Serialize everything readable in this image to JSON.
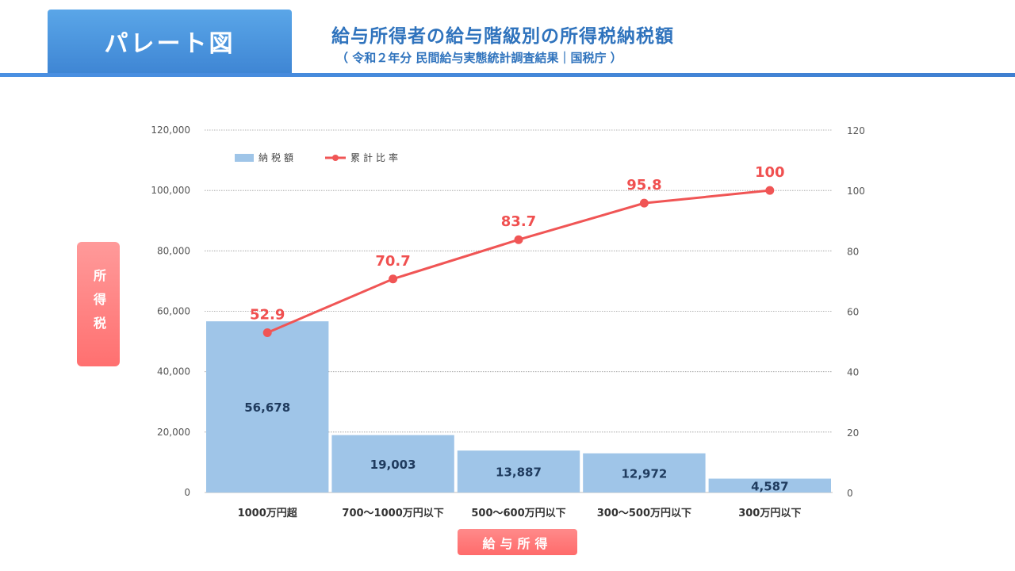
{
  "header": {
    "tab_label": "パレート図",
    "title": "給与所得者の給与階級別の所得税納税額",
    "subtitle": "（ 令和２年分 民間給与実態統計調査結果｜国税庁 ）"
  },
  "axis_badges": {
    "y": "所得税",
    "x": "給与所得"
  },
  "colors": {
    "bar": "#9fc5e8",
    "line": "#f05555",
    "header": "#4a90e2",
    "badge": "#ff7373"
  },
  "chart_data": {
    "type": "bar",
    "categories": [
      "1000万円超",
      "700〜1000万円以下",
      "500〜600万円以下",
      "300〜500万円以下",
      "300万円以下"
    ],
    "series": [
      {
        "name": "納税額",
        "type": "bar",
        "axis": "left",
        "values": [
          56678,
          19003,
          13887,
          12972,
          4587
        ],
        "labels": [
          "56,678",
          "19,003",
          "13,887",
          "12,972",
          "4,587"
        ]
      },
      {
        "name": "累計比率",
        "type": "line",
        "axis": "right",
        "values": [
          52.9,
          70.7,
          83.7,
          95.8,
          100
        ],
        "labels": [
          "52.9",
          "70.7",
          "83.7",
          "95.8",
          "100"
        ]
      }
    ],
    "y_left": {
      "range": [
        0,
        120000
      ],
      "ticks": [
        0,
        20000,
        40000,
        60000,
        80000,
        100000,
        120000
      ],
      "tick_labels": [
        "0",
        "20,000",
        "40,000",
        "60,000",
        "80,000",
        "100,000",
        "120,000"
      ]
    },
    "y_right": {
      "range": [
        0,
        120
      ],
      "ticks": [
        0,
        20,
        40,
        60,
        80,
        100,
        120
      ],
      "tick_labels": [
        "0",
        "20",
        "40",
        "60",
        "80",
        "100",
        "120"
      ]
    },
    "grid": true,
    "legend": "top-left"
  }
}
